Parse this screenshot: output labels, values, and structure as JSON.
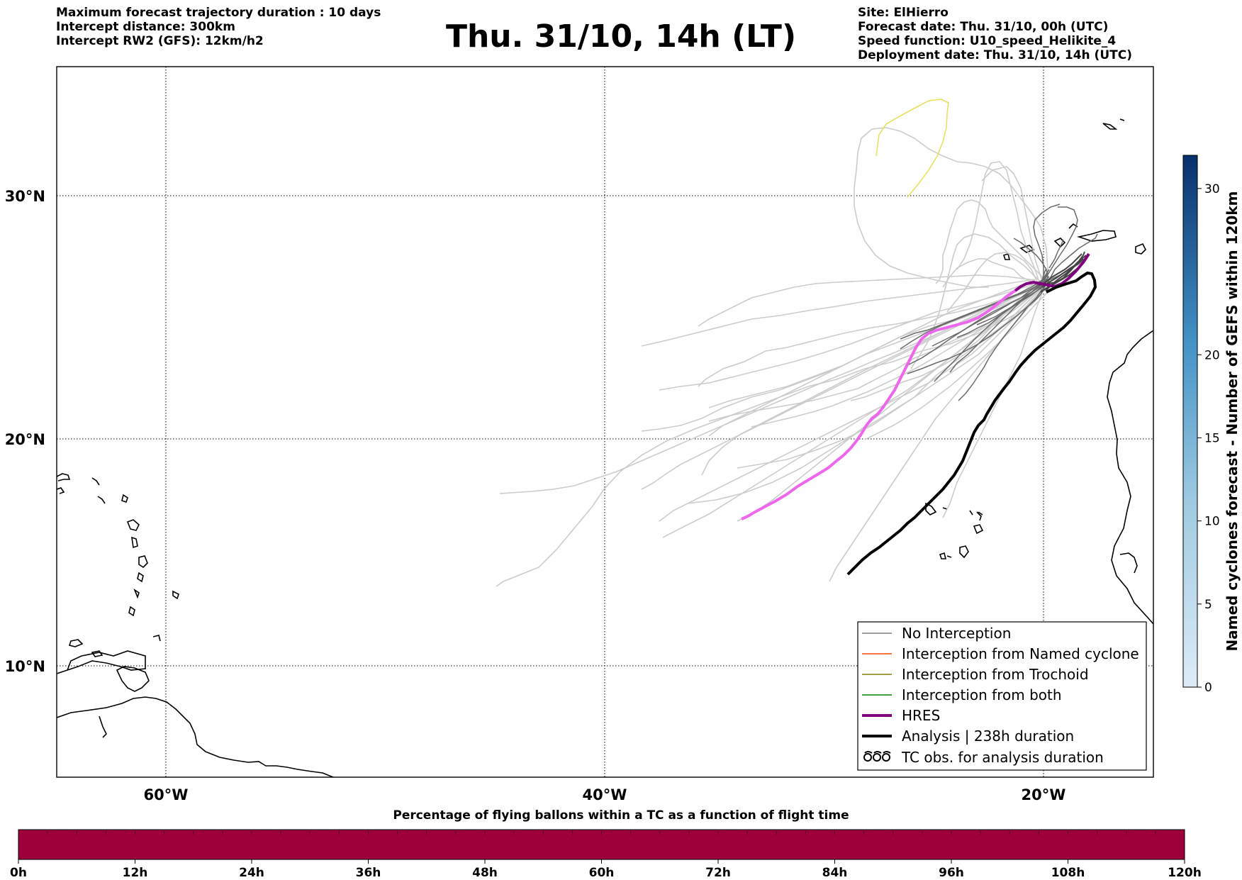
{
  "header": {
    "left_lines": [
      "Maximum forecast trajectory duration : 10 days",
      "Intercept distance: 300km",
      "Intercept RW2 (GFS):  12km/h2"
    ],
    "title": "Thu. 31/10, 14h (LT)",
    "right_lines": [
      "Site: ElHierro",
      "Forecast date: Thu. 31/10, 00h (UTC)",
      "Speed function: U10_speed_Helikite_4",
      "Deployment date: Thu. 31/10, 14h (UTC)"
    ]
  },
  "map": {
    "lon_range": [
      -65,
      -15
    ],
    "lat_range": [
      5.4,
      34.7
    ],
    "lon_labels": [
      "60°W",
      "40°W",
      "20°W"
    ],
    "lat_labels": [
      "30°N",
      "20°N",
      "10°N"
    ],
    "grid": "dotted",
    "legend": {
      "placement": "lower-right",
      "items": [
        {
          "label": "No Interception",
          "color": "#808080"
        },
        {
          "label": "Interception from Named cyclone",
          "color": "#ff4500"
        },
        {
          "label": "Interception from Trochoid",
          "color": "#808000"
        },
        {
          "label": "Interception from both",
          "color": "#008000"
        },
        {
          "label": "HRES",
          "color": "#800080"
        },
        {
          "label": "Analysis | 238h duration",
          "color": "#000000"
        },
        {
          "label": "TC obs. for analysis duration",
          "color": "#000000",
          "icon": "cyclone-symbols-icon"
        }
      ]
    },
    "colors": {
      "ensemble": "#cccccc",
      "no_interception": "#6a6a6a",
      "hres_early": "#800080",
      "hres_late": "#ee66ee",
      "analysis": "#000000",
      "yellow_track": "#e8e060"
    }
  },
  "colorbar_right": {
    "label": "Named cyclones forecast - Number of GEFS within 120km",
    "ticks": [
      "0",
      "5",
      "10",
      "15",
      "20",
      "30"
    ],
    "range": [
      0,
      32
    ]
  },
  "colorbar_bottom": {
    "title": "Percentage of flying ballons within a TC as a function of flight time",
    "ticks": [
      "0h",
      "12h",
      "24h",
      "36h",
      "48h",
      "60h",
      "72h",
      "84h",
      "96h",
      "108h",
      "120h"
    ],
    "fill_color": "#9e003a"
  }
}
